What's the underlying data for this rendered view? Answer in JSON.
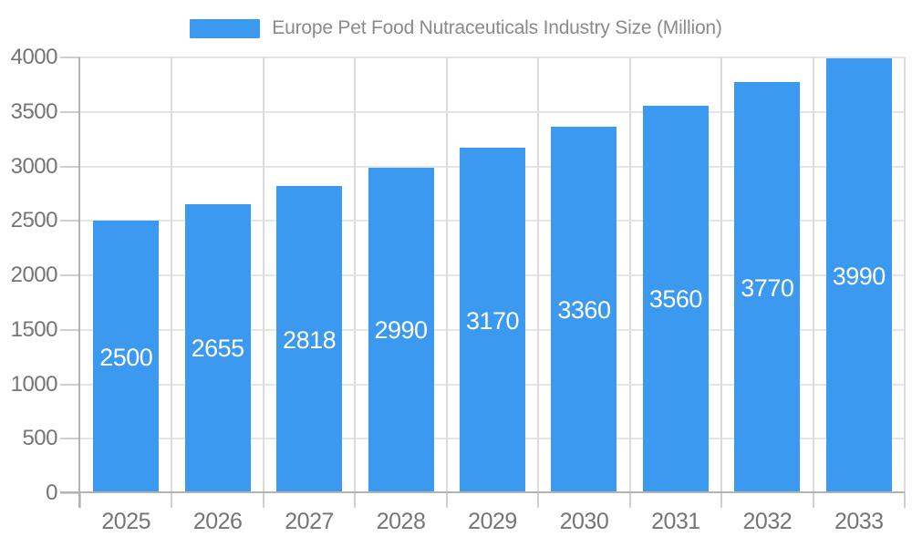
{
  "chart_data": {
    "type": "bar",
    "title": "Europe Pet Food Nutraceuticals Industry Size (Million)",
    "categories": [
      "2025",
      "2026",
      "2027",
      "2028",
      "2029",
      "2030",
      "2031",
      "2032",
      "2033"
    ],
    "values": [
      2500,
      2655,
      2818,
      2990,
      3170,
      3360,
      3560,
      3770,
      3990
    ],
    "xlabel": "",
    "ylabel": "",
    "ylim": [
      0,
      4000
    ],
    "ytick_step": 500,
    "yticks": [
      0,
      500,
      1000,
      1500,
      2000,
      2500,
      3000,
      3500,
      4000
    ],
    "grid": true,
    "legend_position": "top-center",
    "bar_label_position": "middle-of-bar",
    "colors": {
      "bar": "#3B9AF0",
      "bar_label": "#FFFFFF",
      "axis_text": "#757575",
      "title_text": "#8A8A8A",
      "grid": "#E5E5E5",
      "vgrid": "#DCDCDC",
      "tick": "#CFCFCF",
      "axis_line": "#B3B3B3",
      "background": "#FFFFFF"
    }
  }
}
